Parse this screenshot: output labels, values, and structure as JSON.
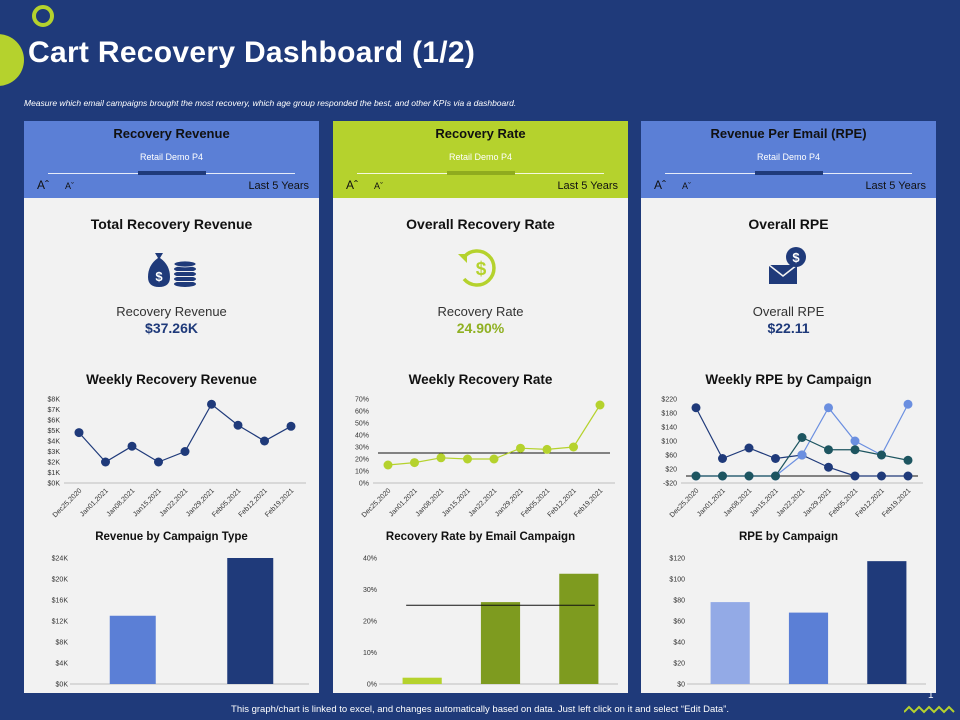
{
  "page": {
    "title": "Cart Recovery Dashboard (1/2)",
    "subtitle": "Measure which email campaigns brought the most recovery, which age group responded the best, and other KPIs via a dashboard.",
    "footer": "This graph/chart is linked to excel, and changes automatically based on data. Just left click on it and select “Edit Data”.",
    "page_number": "1"
  },
  "colors": {
    "background": "#1f3a7a",
    "accent_green": "#b5d22d",
    "blue": "#5b7fd6",
    "navy": "#1f3a7a",
    "dark_green": "#7e9b1f"
  },
  "panels": [
    {
      "title": "Recovery Revenue",
      "subtitle": "Retail Demo  P4",
      "font_a": "Aˆ",
      "font_b": "Aˇ",
      "period": "Last 5 Years",
      "kpi_title": "Total Recovery Revenue",
      "icon": "money-bag-coins-icon",
      "kpi_label": "Recovery Revenue",
      "kpi_value": "$37.26K",
      "chart_title": "Weekly Recovery Revenue",
      "chart2_title": "Revenue by Campaign Type"
    },
    {
      "title": "Recovery Rate",
      "subtitle": "Retail Demo  P4",
      "font_a": "Aˆ",
      "font_b": "Aˇ",
      "period": "Last 5 Years",
      "kpi_title": "Overall Recovery Rate",
      "icon": "dollar-refresh-icon",
      "kpi_label": "Recovery Rate",
      "kpi_value": "24.90%",
      "chart_title": "Weekly Recovery Rate",
      "chart2_title": "Recovery Rate by Email Campaign"
    },
    {
      "title": "Revenue Per Email (RPE)",
      "subtitle": "Retail Demo  P4",
      "font_a": "Aˆ",
      "font_b": "Aˇ",
      "period": "Last 5 Years",
      "kpi_title": "Overall RPE",
      "icon": "email-dollar-icon",
      "kpi_label": "Overall RPE",
      "kpi_value": "$22.11",
      "chart_title": "Weekly RPE by Campaign",
      "chart2_title": "RPE by Campaign"
    }
  ],
  "chart_data": [
    {
      "type": "line",
      "title": "Weekly Recovery Revenue",
      "x": [
        "Dec25,2020",
        "Jan01,2021",
        "Jan08,2021",
        "Jan15,2021",
        "Jan22,2021",
        "Jan29,2021",
        "Feb05,2021",
        "Feb12,2021",
        "Feb19,2021"
      ],
      "y_ticks": [
        "$0K",
        "$1K",
        "$2K",
        "$3K",
        "$4K",
        "$5K",
        "$6K",
        "$7K",
        "$8K"
      ],
      "ylim": [
        0,
        8
      ],
      "series": [
        {
          "values": [
            4.8,
            2.0,
            3.5,
            2.0,
            3.0,
            7.5,
            5.5,
            4.0,
            5.4
          ],
          "color": "#1f3a7a"
        }
      ]
    },
    {
      "type": "line",
      "title": "Weekly Recovery Rate",
      "x": [
        "Dec25,2020",
        "Jan01,2021",
        "Jan08,2021",
        "Jan15,2021",
        "Jan22,2021",
        "Jan29,2021",
        "Feb05,2021",
        "Feb12,2021",
        "Feb19,2021"
      ],
      "y_ticks": [
        "0%",
        "10%",
        "20%",
        "30%",
        "40%",
        "50%",
        "60%",
        "70%"
      ],
      "ylim": [
        0,
        70
      ],
      "reference_line": 25,
      "series": [
        {
          "values": [
            15,
            17,
            21,
            20,
            20,
            29,
            28,
            30,
            65
          ],
          "color": "#b5d22d"
        }
      ]
    },
    {
      "type": "line",
      "title": "Weekly RPE by Campaign",
      "x": [
        "Dec25,2020",
        "Jan01,2021",
        "Jan08,2021",
        "Jan15,2021",
        "Jan22,2021",
        "Jan29,2021",
        "Feb05,2021",
        "Feb12,2021",
        "Feb19,2021"
      ],
      "y_ticks": [
        "-$20",
        "$20",
        "$60",
        "$100",
        "$140",
        "$180",
        "$220"
      ],
      "ylim": [
        -20,
        220
      ],
      "reference_line": 0,
      "series": [
        {
          "values": [
            195,
            50,
            80,
            50,
            60,
            25,
            0,
            0,
            0
          ],
          "color": "#1f3a7a"
        },
        {
          "values": [
            0,
            0,
            0,
            0,
            60,
            195,
            100,
            60,
            205
          ],
          "color": "#6b8fe0"
        },
        {
          "values": [
            0,
            0,
            0,
            0,
            110,
            75,
            75,
            60,
            45
          ],
          "color": "#1d5560"
        }
      ]
    },
    {
      "type": "bar",
      "title": "Revenue by Campaign Type",
      "y_ticks": [
        "$0K",
        "$4K",
        "$8K",
        "$12K",
        "$16K",
        "$20K",
        "$24K"
      ],
      "ylim": [
        0,
        24
      ],
      "values": [
        13,
        24
      ],
      "colors": [
        "#5b7fd6",
        "#1f3a7a"
      ]
    },
    {
      "type": "bar",
      "title": "Recovery Rate by Email Campaign",
      "y_ticks": [
        "0%",
        "10%",
        "20%",
        "30%",
        "40%"
      ],
      "ylim": [
        0,
        40
      ],
      "reference_line": 25,
      "values": [
        2,
        26,
        35
      ],
      "colors": [
        "#b5d22d",
        "#7e9b1f",
        "#7e9b1f"
      ]
    },
    {
      "type": "bar",
      "title": "RPE by Campaign",
      "y_ticks": [
        "$0",
        "$20",
        "$40",
        "$60",
        "$80",
        "$100",
        "$120"
      ],
      "ylim": [
        0,
        120
      ],
      "values": [
        78,
        68,
        117
      ],
      "colors": [
        "#93aae6",
        "#5b7fd6",
        "#1f3a7a"
      ]
    }
  ]
}
